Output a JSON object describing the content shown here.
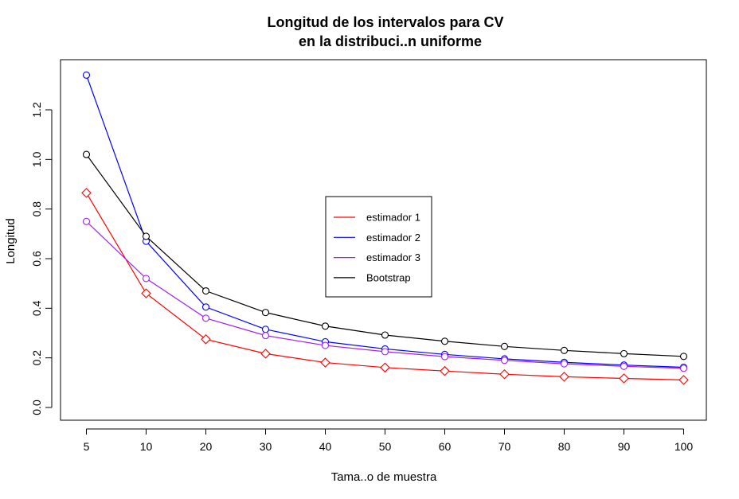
{
  "chart_data": {
    "type": "line",
    "title": [
      "Longitud de los intervalos para CV",
      "en la distribuci..n uniforme"
    ],
    "xlabel": "Tama..o de muestra",
    "ylabel": "Longitud",
    "x": [
      5,
      10,
      20,
      30,
      40,
      50,
      60,
      70,
      80,
      90,
      100
    ],
    "x_tick_labels": [
      "5",
      "10",
      "20",
      "30",
      "40",
      "50",
      "60",
      "70",
      "80",
      "90",
      "100"
    ],
    "y_ticks": [
      0.0,
      0.2,
      0.4,
      0.6,
      0.8,
      1.0,
      1.2
    ],
    "y_tick_labels": [
      "0.0",
      "0.2",
      "0.4",
      "0.6",
      "0.8",
      "1.0",
      "1.2"
    ],
    "ylim": [
      -0.04,
      1.4
    ],
    "legend_position": "center",
    "series": [
      {
        "name": "estimador 1",
        "color": "#ff0000",
        "marker": "diamond",
        "values": [
          0.865,
          0.46,
          0.275,
          0.217,
          0.181,
          0.161,
          0.147,
          0.134,
          0.124,
          0.117,
          0.111
        ]
      },
      {
        "name": "estimador 2",
        "color": "#0000ff",
        "marker": "circle",
        "values": [
          1.34,
          0.67,
          0.405,
          0.315,
          0.265,
          0.236,
          0.214,
          0.196,
          0.182,
          0.171,
          0.162
        ]
      },
      {
        "name": "estimador 3",
        "color": "#a020f0",
        "marker": "circle",
        "values": [
          0.75,
          0.52,
          0.36,
          0.29,
          0.25,
          0.225,
          0.205,
          0.19,
          0.176,
          0.166,
          0.158
        ]
      },
      {
        "name": "Bootstrap",
        "color": "#000000",
        "marker": "circle",
        "values": [
          1.02,
          0.69,
          0.47,
          0.383,
          0.328,
          0.292,
          0.267,
          0.246,
          0.23,
          0.217,
          0.206
        ]
      }
    ]
  }
}
